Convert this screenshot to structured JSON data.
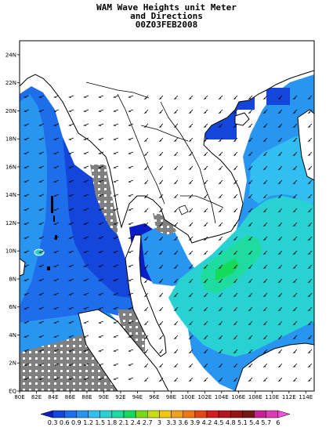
{
  "title": {
    "line1": "WAM Wave Heights unit Meter",
    "line2": "and Directions",
    "line3": "00Z03FEB2008"
  },
  "map": {
    "lon_range": [
      80,
      115
    ],
    "lat_range": [
      0,
      25
    ],
    "x_ticks": [
      "80E",
      "82E",
      "84E",
      "86E",
      "88E",
      "90E",
      "92E",
      "94E",
      "96E",
      "98E",
      "100E",
      "102E",
      "104E",
      "106E",
      "108E",
      "110E",
      "112E",
      "114E"
    ],
    "y_ticks": [
      "EQ",
      "2N",
      "4N",
      "6N",
      "8N",
      "10N",
      "12N",
      "14N",
      "16N",
      "18N",
      "20N",
      "22N",
      "24N"
    ],
    "colors": {
      "land": "#ffffff",
      "no_data": "#808080",
      "coast": "#000000"
    }
  },
  "colorbar": {
    "labels": [
      "0.3",
      "0.6",
      "0.9",
      "1.2",
      "1.5",
      "1.8",
      "2.1",
      "2.4",
      "2.7",
      "3",
      "3.3",
      "3.6",
      "3.9",
      "4.2",
      "4.5",
      "4.8",
      "5.1",
      "5.4",
      "5.7",
      "6"
    ],
    "colors": [
      "#0a1ec8",
      "#1446dc",
      "#1e6eeb",
      "#2896f0",
      "#32bef0",
      "#28d2d2",
      "#1edca0",
      "#14dc5a",
      "#78dc14",
      "#c8dc14",
      "#f0c814",
      "#f0a01e",
      "#f07814",
      "#e64614",
      "#d21e1e",
      "#b4141e",
      "#961414",
      "#781414",
      "#c81e96",
      "#dc3cb4",
      "#f050dc"
    ]
  }
}
